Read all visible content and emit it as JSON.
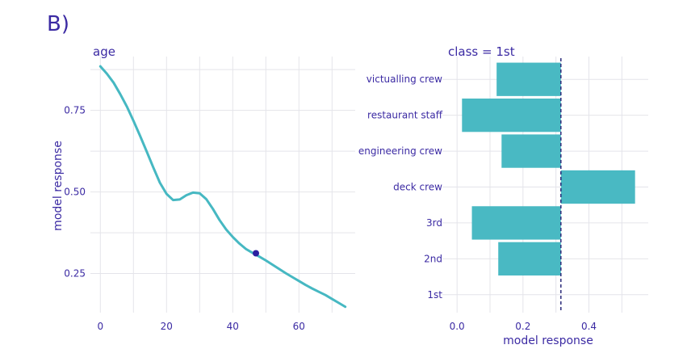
{
  "panel_label": "B)",
  "chart_data": [
    {
      "type": "line",
      "title": "age",
      "xlabel": "",
      "ylabel": "model response",
      "xlim": [
        -3,
        77
      ],
      "ylim": [
        0.13,
        0.915
      ],
      "x_ticks": [
        0,
        20,
        40,
        60
      ],
      "x_tick_labels": [
        "0",
        "20",
        "40",
        "60"
      ],
      "y_ticks": [
        0.25,
        0.5,
        0.75
      ],
      "y_tick_labels": [
        "0.25",
        "0.50",
        "0.75"
      ],
      "grid": true,
      "line_color": "#46b8c2",
      "point_color": "#2a1fa0",
      "series": [
        {
          "x": [
            0,
            2,
            4,
            6,
            8,
            10,
            12,
            14,
            16,
            18,
            20,
            22,
            24,
            26,
            28,
            30,
            32,
            34,
            36,
            38,
            40,
            42,
            44,
            46,
            48,
            50,
            52,
            54,
            56,
            58,
            60,
            62,
            64,
            66,
            68,
            70,
            72,
            74
          ],
          "y": [
            0.885,
            0.862,
            0.835,
            0.8,
            0.762,
            0.718,
            0.672,
            0.624,
            0.575,
            0.528,
            0.494,
            0.475,
            0.477,
            0.49,
            0.498,
            0.496,
            0.478,
            0.448,
            0.414,
            0.385,
            0.362,
            0.342,
            0.325,
            0.313,
            0.302,
            0.29,
            0.277,
            0.264,
            0.251,
            0.239,
            0.227,
            0.215,
            0.204,
            0.194,
            0.184,
            0.172,
            0.16,
            0.148
          ]
        }
      ],
      "highlight_point": {
        "x": 47,
        "y": 0.312
      }
    },
    {
      "type": "bar",
      "orientation": "horizontal",
      "title": "class = 1st",
      "xlabel": "model response",
      "ylabel": "",
      "xlim": [
        -0.02,
        0.58
      ],
      "x_ticks": [
        0.0,
        0.2,
        0.4
      ],
      "x_tick_labels": [
        "0.0",
        "0.2",
        "0.4"
      ],
      "grid": true,
      "bar_color": "#49b9c3",
      "baseline": 0.315,
      "baseline_color": "#2a2a7a",
      "categories": [
        "victualling crew",
        "restaurant staff",
        "engineering crew",
        "deck crew",
        "3rd",
        "2nd",
        "1st"
      ],
      "values": [
        0.12,
        0.015,
        0.135,
        0.54,
        0.045,
        0.125,
        0.315
      ]
    }
  ]
}
